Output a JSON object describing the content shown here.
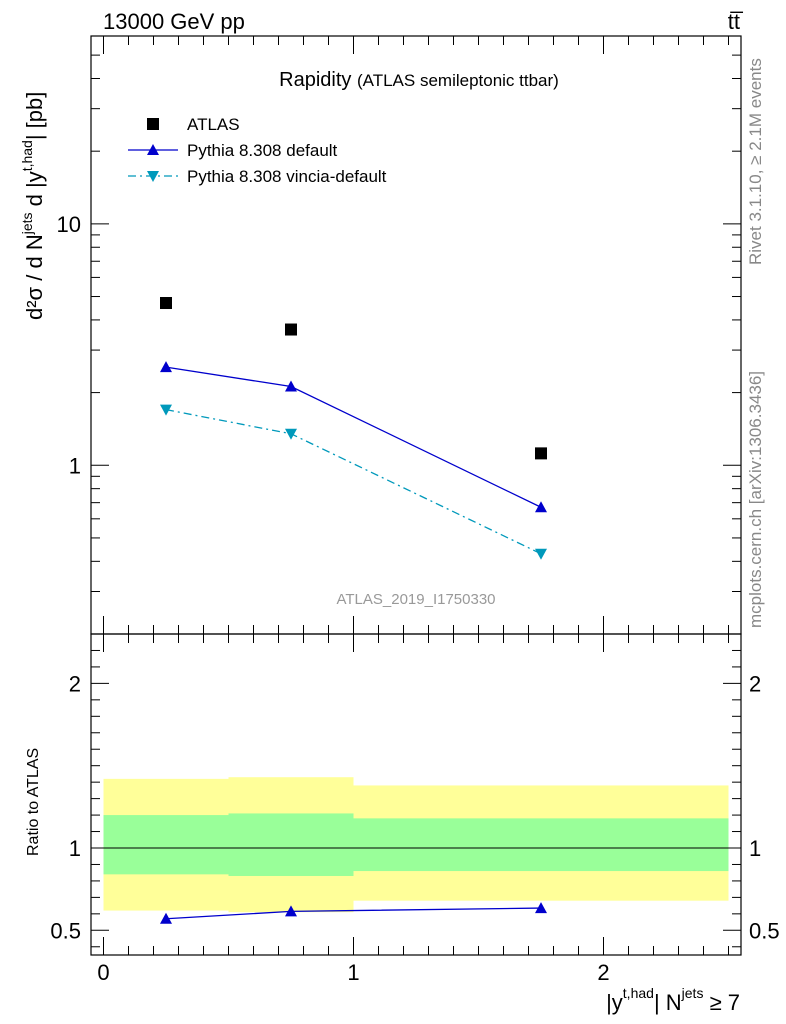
{
  "header": {
    "left": "13000 GeV pp",
    "right": "tt̅"
  },
  "side_labels": {
    "rivet": "Rivet 3.1.10, ≥ 2.1M events",
    "mcplots": "mcplots.cern.ch [arXiv:1306.3436]"
  },
  "chart_data": [
    {
      "panel": "main",
      "type": "scatter",
      "title": "Rapidity",
      "subtitle": "(ATLAS semileptonic ttbar)",
      "analysis_id": "ATLAS_2019_I1750330",
      "ylabel": {
        "text": "d²σ / d N",
        "sup1": "jets",
        "mid": " d |y",
        "sup2": "t,had",
        "tail": "| [pb]"
      },
      "yscale": "log",
      "ylim": [
        0.2,
        60
      ],
      "xlim": [
        -0.05,
        2.55
      ],
      "yticks": [
        {
          "value": 1,
          "label": "1"
        },
        {
          "value": 10,
          "label": "10"
        }
      ],
      "legend_position": "top-left",
      "series": [
        {
          "name": "ATLAS",
          "marker": "square",
          "color": "#000000",
          "line": "none",
          "x": [
            0.25,
            0.75,
            1.75
          ],
          "y": [
            4.7,
            3.65,
            1.12
          ]
        },
        {
          "name": "Pythia 8.308 default",
          "marker": "triangle-up",
          "color": "#0000cc",
          "line": "solid",
          "x": [
            0.25,
            0.75,
            1.75
          ],
          "y": [
            2.55,
            2.12,
            0.67
          ]
        },
        {
          "name": "Pythia 8.308 vincia-default",
          "marker": "triangle-down",
          "color": "#0099bb",
          "line": "dashdot",
          "x": [
            0.25,
            0.75,
            1.75
          ],
          "y": [
            1.7,
            1.35,
            0.43
          ]
        }
      ]
    },
    {
      "panel": "ratio",
      "type": "line",
      "ylabel": "Ratio to ATLAS",
      "xlabel": {
        "text": "|y",
        "sup1": "t,had",
        "mid": "| N",
        "sup2": "jets",
        "tail": " ≥ 7"
      },
      "xlim": [
        -0.05,
        2.55
      ],
      "ylim": [
        0.35,
        2.3
      ],
      "xticks": [
        {
          "value": 0,
          "label": "0"
        },
        {
          "value": 1,
          "label": "1"
        },
        {
          "value": 2,
          "label": "2"
        }
      ],
      "yticks": [
        {
          "value": 0.5,
          "label": "0.5"
        },
        {
          "value": 1,
          "label": "1"
        },
        {
          "value": 2,
          "label": "2"
        }
      ],
      "bands": [
        {
          "x0": 0,
          "x1": 0.5,
          "yellow": [
            0.62,
            1.42
          ],
          "green": [
            0.84,
            1.2
          ]
        },
        {
          "x0": 0.5,
          "x1": 1.0,
          "yellow": [
            0.61,
            1.43
          ],
          "green": [
            0.83,
            1.21
          ]
        },
        {
          "x0": 1.0,
          "x1": 2.5,
          "yellow": [
            0.68,
            1.38
          ],
          "green": [
            0.86,
            1.18
          ]
        }
      ],
      "band_colors": {
        "yellow": "#ffff99",
        "green": "#99ff99"
      },
      "series": [
        {
          "name": "Pythia 8.308 default",
          "marker": "triangle-up",
          "color": "#0000cc",
          "x": [
            0.25,
            0.75,
            1.75
          ],
          "y": [
            0.57,
            0.615,
            0.635
          ]
        }
      ]
    }
  ]
}
